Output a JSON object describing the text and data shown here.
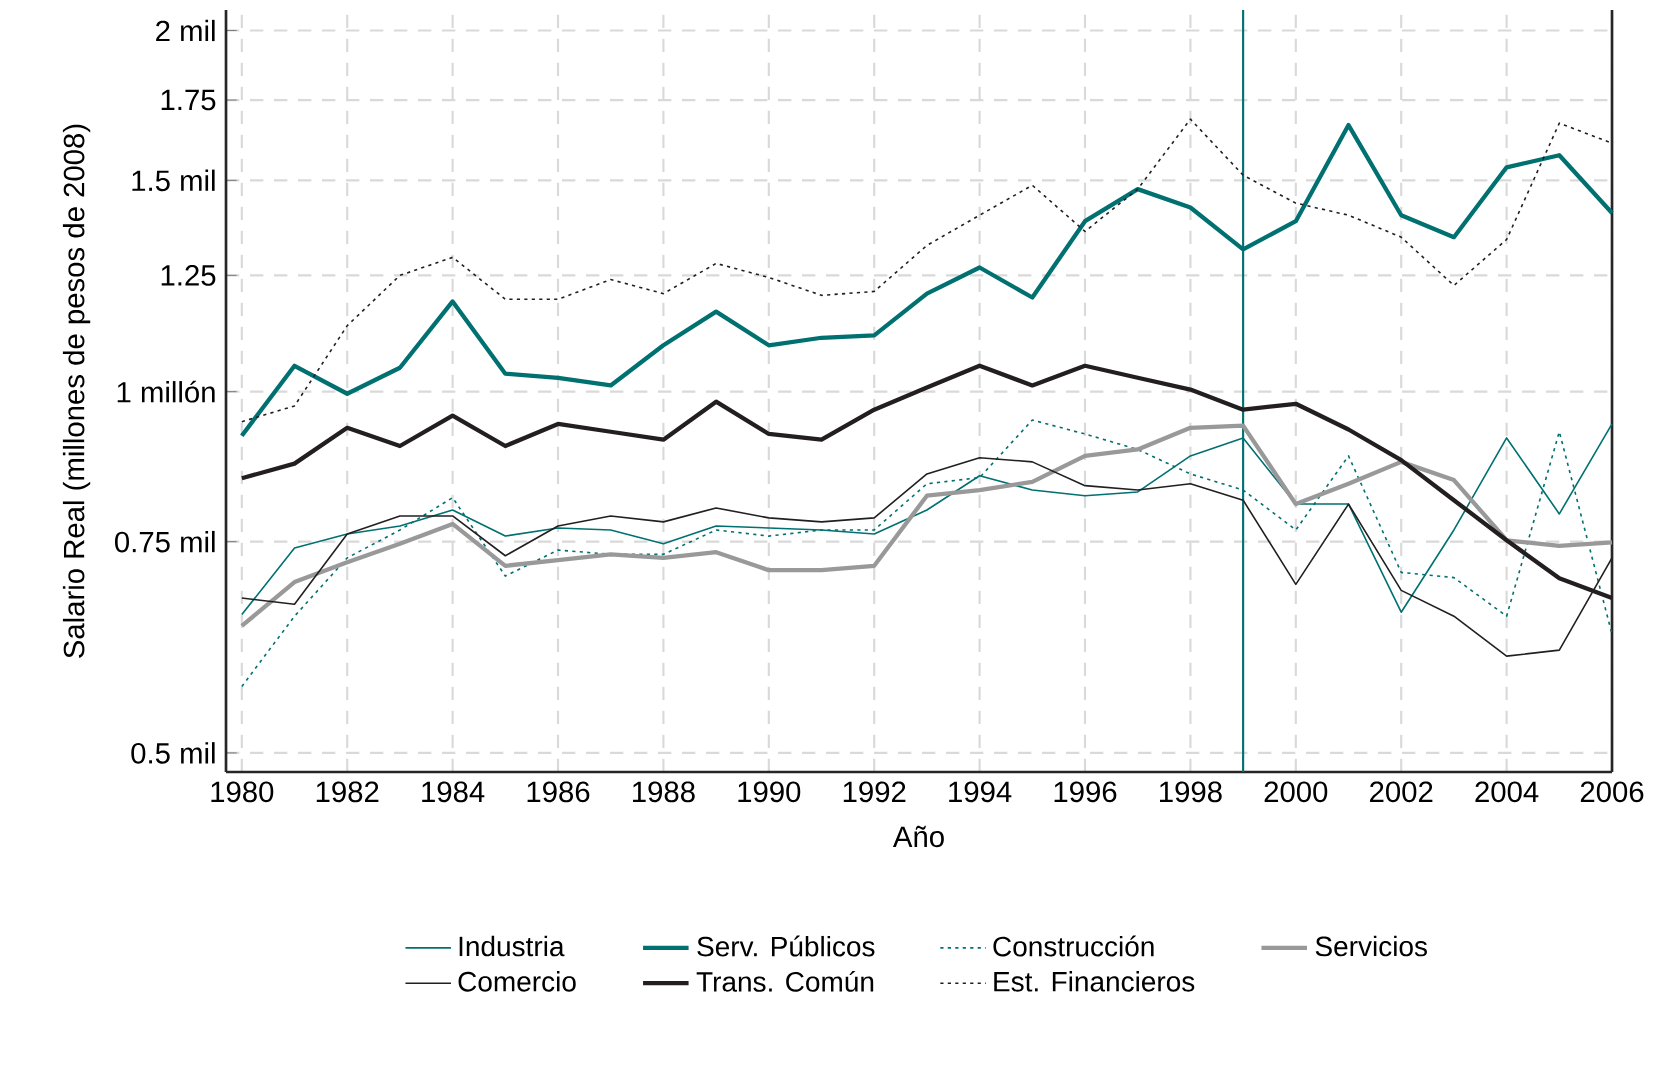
{
  "chart_data": {
    "type": "line",
    "xlabel": "Año",
    "ylabel": "Salario Real (millones de pesos de 2008)",
    "x": [
      1980,
      1981,
      1982,
      1983,
      1984,
      1985,
      1986,
      1987,
      1988,
      1989,
      1990,
      1991,
      1992,
      1993,
      1994,
      1995,
      1996,
      1997,
      1998,
      1999,
      2000,
      2001,
      2002,
      2003,
      2004,
      2005,
      2006
    ],
    "series": [
      {
        "name": "Industria",
        "color": "#007070",
        "line_style": "solid",
        "values": [
          0.652,
          0.741,
          0.761,
          0.773,
          0.797,
          0.758,
          0.77,
          0.767,
          0.747,
          0.773,
          0.77,
          0.767,
          0.761,
          0.797,
          0.851,
          0.828,
          0.819,
          0.825,
          0.884,
          0.915,
          0.806,
          0.806,
          0.655,
          0.767,
          0.915,
          0.791,
          0.94
        ]
      },
      {
        "name": "Serv. Públicos",
        "color": "#007070",
        "line_style": "solid",
        "values": [
          0.919,
          1.051,
          0.996,
          1.047,
          1.189,
          1.035,
          1.027,
          1.012,
          1.093,
          1.166,
          1.093,
          1.109,
          1.114,
          1.207,
          1.269,
          1.198,
          1.387,
          1.475,
          1.424,
          1.314,
          1.387,
          1.668,
          1.403,
          1.345,
          1.538,
          1.574,
          1.409
        ]
      },
      {
        "name": "Construcción",
        "color": "#007070",
        "line_style": "dotted",
        "values": [
          0.568,
          0.65,
          0.727,
          0.767,
          0.816,
          0.702,
          0.738,
          0.732,
          0.732,
          0.767,
          0.758,
          0.767,
          0.767,
          0.838,
          0.848,
          0.947,
          0.922,
          0.895,
          0.854,
          0.828,
          0.767,
          0.884,
          0.707,
          0.7,
          0.65,
          0.926,
          0.628
        ]
      },
      {
        "name": "Servicios",
        "color": "#999999",
        "line_style": "solid",
        "values": [
          0.638,
          0.694,
          0.721,
          0.747,
          0.776,
          0.716,
          0.724,
          0.732,
          0.727,
          0.735,
          0.71,
          0.71,
          0.716,
          0.819,
          0.828,
          0.841,
          0.884,
          0.895,
          0.933,
          0.937,
          0.806,
          0.838,
          0.874,
          0.844,
          0.752,
          0.744,
          0.749
        ]
      },
      {
        "name": "Comercio",
        "color": "#231f20",
        "line_style": "solid",
        "values": [
          0.673,
          0.665,
          0.761,
          0.788,
          0.788,
          0.73,
          0.773,
          0.788,
          0.779,
          0.8,
          0.785,
          0.779,
          0.785,
          0.854,
          0.881,
          0.874,
          0.835,
          0.828,
          0.838,
          0.812,
          0.691,
          0.806,
          0.683,
          0.65,
          0.602,
          0.609,
          0.727
        ]
      },
      {
        "name": "Trans. Común",
        "color": "#231f20",
        "line_style": "solid",
        "values": [
          0.847,
          0.871,
          0.933,
          0.901,
          0.955,
          0.901,
          0.94,
          0.926,
          0.912,
          0.981,
          0.922,
          0.912,
          0.966,
          1.008,
          1.051,
          1.012,
          1.051,
          1.027,
          1.004,
          0.966,
          0.977,
          0.93,
          0.877,
          0.812,
          0.752,
          0.699,
          0.673
        ]
      },
      {
        "name": "Est. Financieros",
        "color": "#231f20",
        "line_style": "dotted",
        "values": [
          0.944,
          0.973,
          1.135,
          1.25,
          1.294,
          1.194,
          1.194,
          1.24,
          1.207,
          1.279,
          1.245,
          1.203,
          1.212,
          1.324,
          1.403,
          1.486,
          1.36,
          1.475,
          1.687,
          1.515,
          1.436,
          1.403,
          1.345,
          1.226,
          1.339,
          1.674,
          1.611
        ]
      }
    ],
    "log": "y",
    "xlim": [
      1979.7,
      2006
    ],
    "ylim": [
      0.482,
      2.08
    ],
    "xticks": [
      1980,
      1982,
      1984,
      1986,
      1988,
      1990,
      1992,
      1994,
      1996,
      1998,
      2000,
      2002,
      2004,
      2006
    ],
    "yticks": [
      {
        "value": 0.5,
        "label": "0.5 mil"
      },
      {
        "value": 0.75,
        "label": "0.75 mil"
      },
      {
        "value": 1,
        "label": "1 millón"
      },
      {
        "value": 1.25,
        "label": "1.25"
      },
      {
        "value": 1.5,
        "label": "1.5 mil"
      },
      {
        "value": 1.75,
        "label": "1.75"
      },
      {
        "value": 2,
        "label": "2 mil"
      }
    ],
    "ref_lines": [
      {
        "axis": "x",
        "value": 1999,
        "color": "#007070",
        "line_style": "solid"
      }
    ],
    "grid": true,
    "legend": "bottom",
    "marker": "none"
  }
}
